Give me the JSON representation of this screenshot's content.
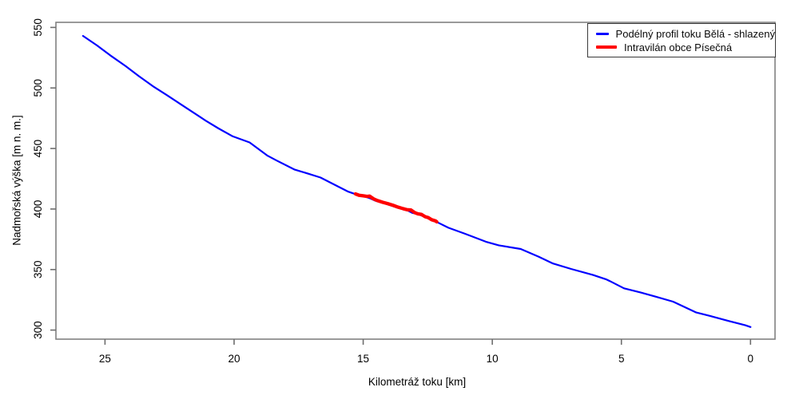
{
  "figure": {
    "background": "#ffffff",
    "frame_color": "#808080",
    "tick_color": "#6e6e6e",
    "text_color": "#000000"
  },
  "axes": {
    "xlabel": "Kilometráž toku [km]",
    "ylabel": "Nadmořská výška [m n. m.]"
  },
  "chart_data": {
    "type": "line",
    "title": "",
    "xlabel": "Kilometráž toku [km]",
    "ylabel": "Nadmořská výška [m n. m.]",
    "x_axis_reversed": true,
    "xlim": [
      26.9,
      -0.95
    ],
    "ylim": [
      292.5,
      554.2
    ],
    "x_ticks": [
      25,
      20,
      15,
      10,
      5,
      0
    ],
    "y_ticks": [
      300,
      350,
      400,
      450,
      500,
      550
    ],
    "grid": false,
    "legend_position": "topright",
    "series": [
      {
        "name": "Podélný profil toku Bělá - shlazený",
        "color": "#0000ff",
        "line_width": 2.2,
        "points": [
          [
            25.85,
            543
          ],
          [
            25.3,
            535
          ],
          [
            24.8,
            527
          ],
          [
            24.2,
            518
          ],
          [
            23.7,
            510
          ],
          [
            23.15,
            501.5
          ],
          [
            22.6,
            494
          ],
          [
            22.1,
            487
          ],
          [
            21.6,
            480
          ],
          [
            21.1,
            473
          ],
          [
            20.6,
            466.5
          ],
          [
            20.05,
            460
          ],
          [
            19.4,
            455
          ],
          [
            18.7,
            444
          ],
          [
            18.35,
            440
          ],
          [
            17.65,
            432.5
          ],
          [
            17.1,
            429
          ],
          [
            16.65,
            426
          ],
          [
            16.1,
            420
          ],
          [
            15.6,
            414.5
          ],
          [
            15.3,
            412.3
          ],
          [
            15.0,
            410.8
          ],
          [
            14.75,
            409
          ],
          [
            14.55,
            407
          ],
          [
            14.15,
            404.5
          ],
          [
            13.65,
            401
          ],
          [
            13.3,
            399
          ],
          [
            13.1,
            396.8
          ],
          [
            12.9,
            395.9
          ],
          [
            12.6,
            393.4
          ],
          [
            12.4,
            391.3
          ],
          [
            12.15,
            389.3
          ],
          [
            11.7,
            384.5
          ],
          [
            11.05,
            379.5
          ],
          [
            10.25,
            373
          ],
          [
            9.75,
            370
          ],
          [
            8.9,
            367
          ],
          [
            8.2,
            360.5
          ],
          [
            7.65,
            355
          ],
          [
            6.95,
            350.5
          ],
          [
            6.1,
            345.5
          ],
          [
            5.6,
            342
          ],
          [
            5.45,
            340.5
          ],
          [
            4.9,
            334.5
          ],
          [
            4.25,
            331
          ],
          [
            3.65,
            327.5
          ],
          [
            3.0,
            323.5
          ],
          [
            2.7,
            320.5
          ],
          [
            2.1,
            314.5
          ],
          [
            1.45,
            311
          ],
          [
            0.85,
            307.5
          ],
          [
            0.2,
            304
          ],
          [
            0.0,
            302.5
          ]
        ]
      },
      {
        "name": "Intravilán obce Písečná",
        "color": "#ff0000",
        "line_width": 4.3,
        "points": [
          [
            15.3,
            412.5
          ],
          [
            15.15,
            411.3
          ],
          [
            15.0,
            410.9
          ],
          [
            14.85,
            410.4
          ],
          [
            14.75,
            410.6
          ],
          [
            14.6,
            408.4
          ],
          [
            14.45,
            407.0
          ],
          [
            14.25,
            405.6
          ],
          [
            14.05,
            404.4
          ],
          [
            13.85,
            403.1
          ],
          [
            13.65,
            401.5
          ],
          [
            13.45,
            400.3
          ],
          [
            13.3,
            399.4
          ],
          [
            13.15,
            399.2
          ],
          [
            13.0,
            397.0
          ],
          [
            12.88,
            396.0
          ],
          [
            12.75,
            395.6
          ],
          [
            12.6,
            393.6
          ],
          [
            12.48,
            392.9
          ],
          [
            12.35,
            391.2
          ],
          [
            12.2,
            390.2
          ],
          [
            12.15,
            389.4
          ]
        ]
      }
    ]
  }
}
